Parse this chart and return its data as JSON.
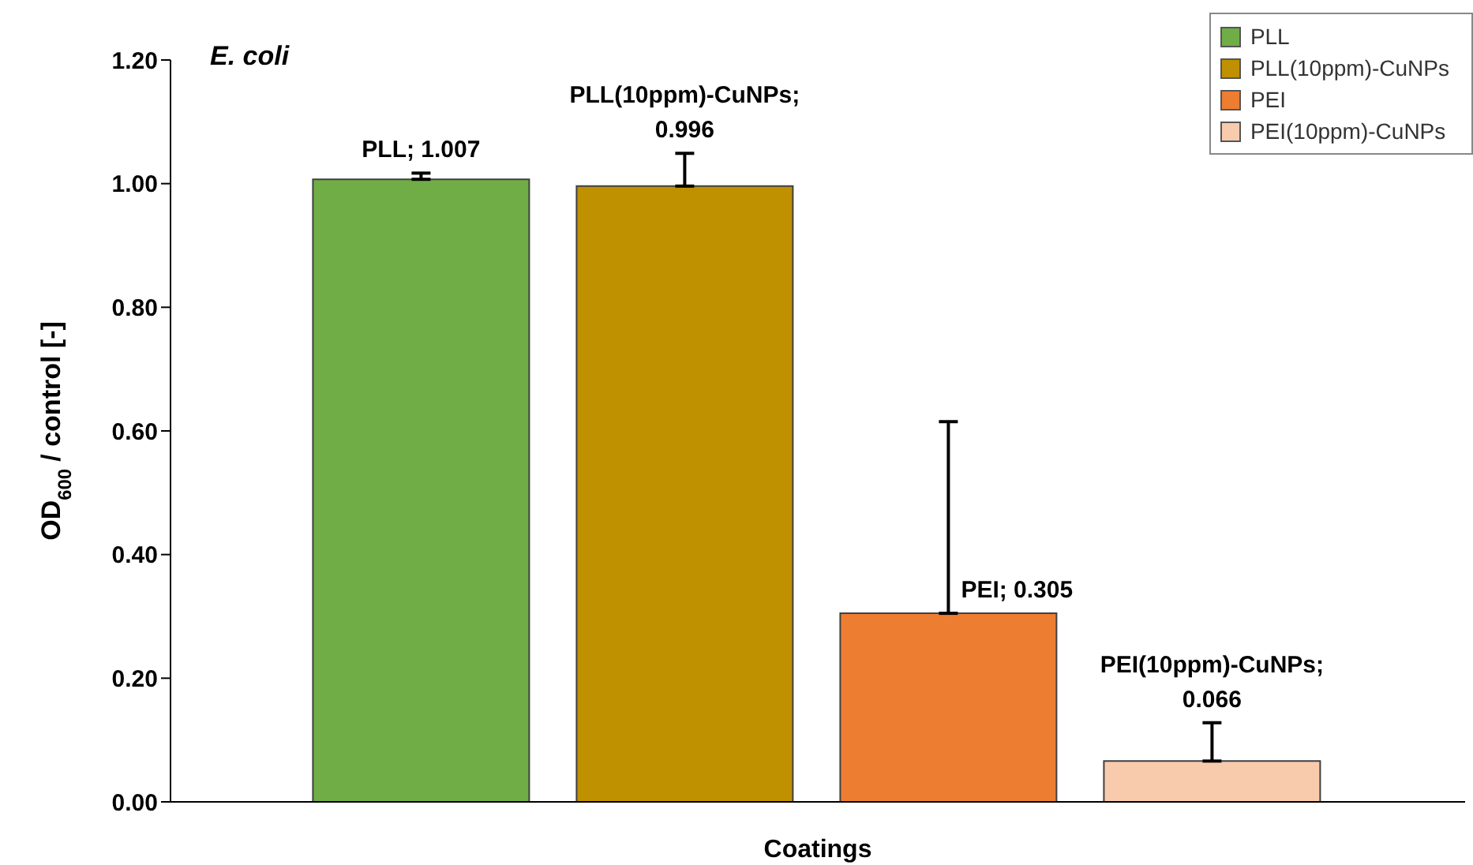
{
  "chart_data": {
    "type": "bar",
    "title": "E. coli",
    "xlabel": "Coatings",
    "ylabel": "OD$_{600}$ / control [-]",
    "categories": [
      null
    ],
    "series": [
      {
        "name": "PLL",
        "color": "#70ad47",
        "values": [
          1.007
        ],
        "errors": [
          [
            1.007,
            1.017
          ]
        ],
        "value_labels": [
          "PLL; 1.007"
        ]
      },
      {
        "name": "PLL(10ppm)-CuNPs",
        "color": "#bf9000",
        "values": [
          0.996
        ],
        "errors": [
          [
            0.996,
            1.049
          ]
        ],
        "value_labels": [
          "PLL(10ppm)-CuNPs; 0.996"
        ]
      },
      {
        "name": "PEI",
        "color": "#ed7d31",
        "values": [
          0.305
        ],
        "errors": [
          [
            0.305,
            0.615
          ]
        ],
        "value_labels": [
          "PEI; 0.305"
        ]
      },
      {
        "name": "PEI(10ppm)-CuNPs",
        "color": "#f8cbad",
        "values": [
          0.066
        ],
        "errors": [
          [
            0.066,
            0.128
          ]
        ],
        "value_labels": [
          "PEI(10ppm)-CuNPs; 0.066"
        ]
      }
    ],
    "ylim": [
      0,
      1.2
    ],
    "yticks": [
      {
        "value": 0,
        "label": "0.00"
      },
      {
        "value": 0.2,
        "label": "0.20"
      },
      {
        "value": 0.4,
        "label": "0.40"
      },
      {
        "value": 0.6,
        "label": "0.60"
      },
      {
        "value": 0.8,
        "label": "0.80"
      },
      {
        "value": 1,
        "label": "1.00"
      },
      {
        "value": 1.2,
        "label": "1.20"
      }
    ],
    "grid": false,
    "legend": "top right",
    "tick_labels": "y"
  }
}
